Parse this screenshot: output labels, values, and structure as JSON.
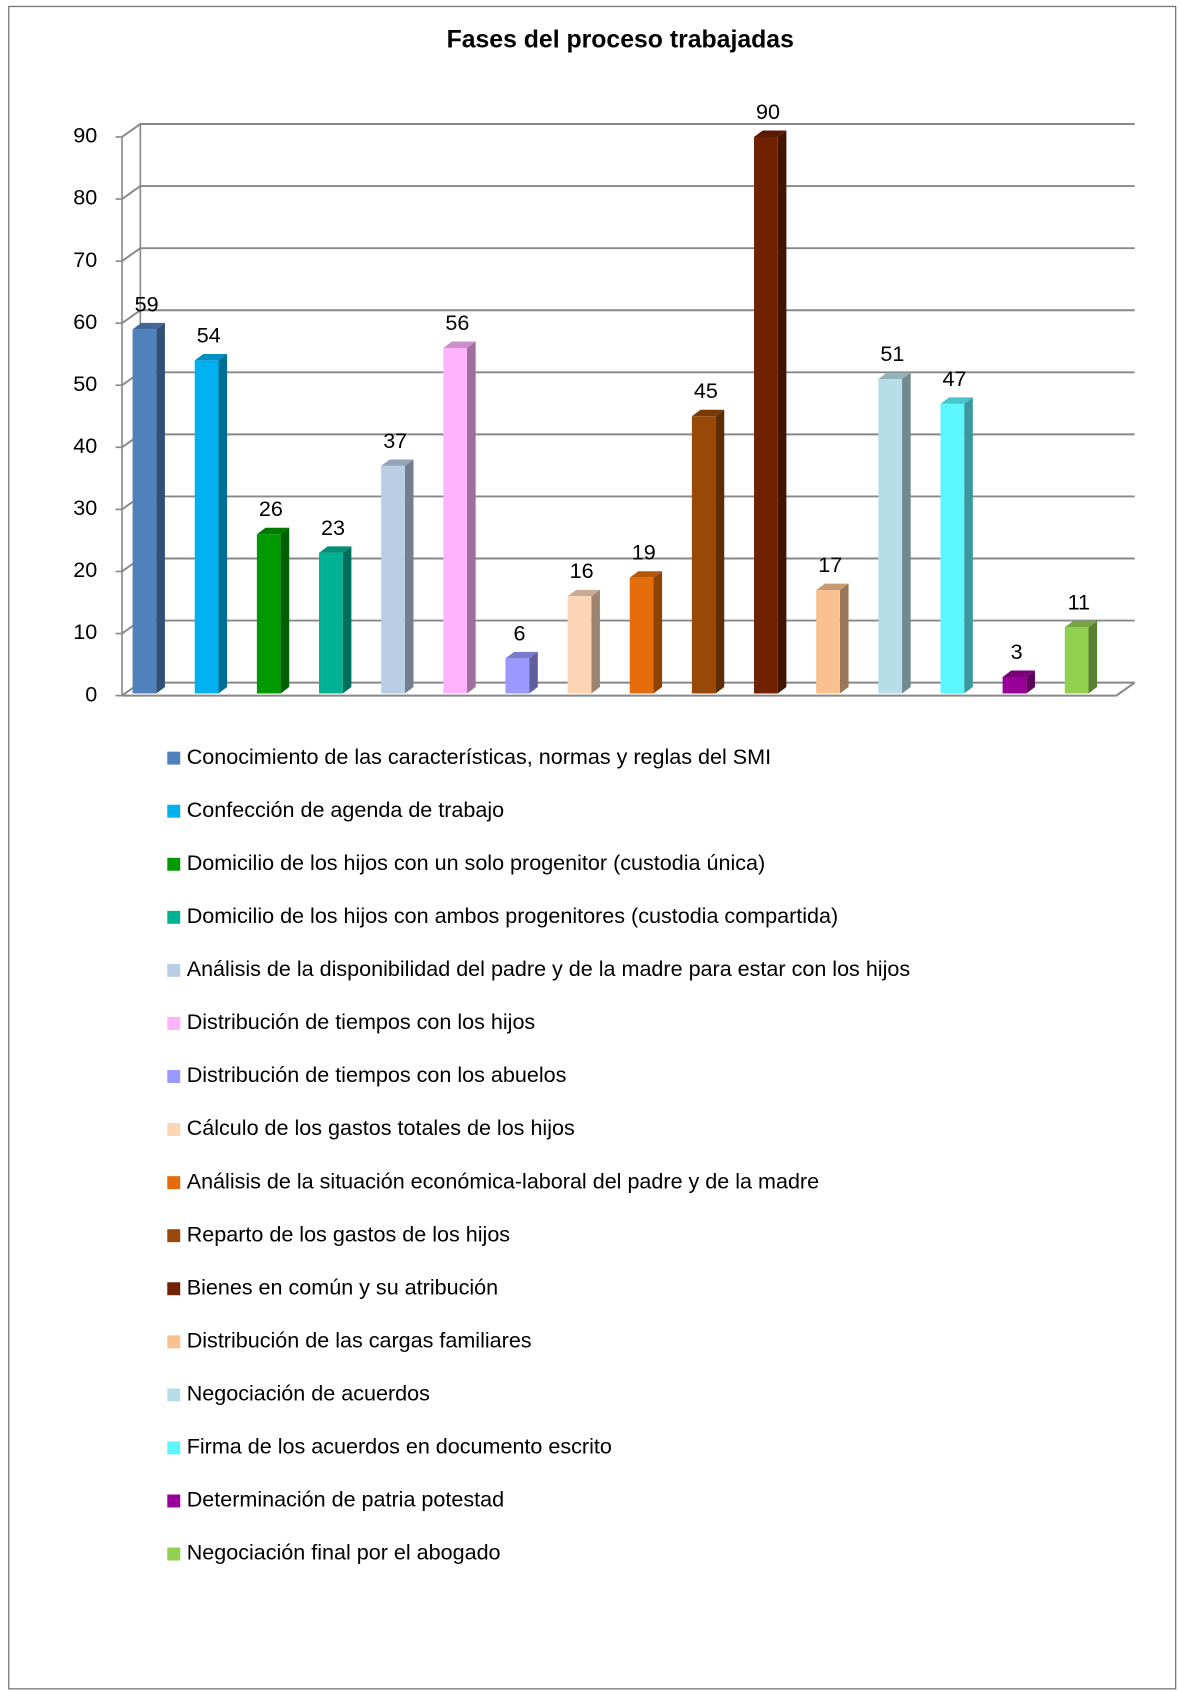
{
  "chart_data": {
    "type": "bar",
    "title": "Fases del proceso trabajadas",
    "categories": [
      "Conocimiento de las características, normas y reglas del SMI",
      "Confección de agenda de trabajo",
      "Domicilio de los hijos con un solo progenitor (custodia única)",
      "Domicilio de los hijos con ambos progenitores (custodia compartida)",
      "Análisis de la disponibilidad del padre y de la madre para estar con los hijos",
      "Distribución de tiempos con los hijos",
      "Distribución de tiempos con los abuelos",
      "Cálculo de los gastos totales de los hijos",
      "Análisis de la situación económica-laboral del padre y de la madre",
      "Reparto de los gastos de los hijos",
      "Bienes en común y su atribución",
      "Distribución de las cargas familiares",
      "Negociación de acuerdos",
      "Firma de los acuerdos en documento escrito",
      "Determinación de patria potestad",
      "Negociación final por el abogado"
    ],
    "values": [
      59,
      54,
      26,
      23,
      37,
      56,
      6,
      16,
      19,
      45,
      90,
      17,
      51,
      47,
      3,
      11
    ],
    "colors": [
      "#4f81bd",
      "#00b0f0",
      "#009900",
      "#00b294",
      "#b9cde5",
      "#ffb3ff",
      "#9999ff",
      "#fcd5b5",
      "#e46c0a",
      "#984807",
      "#6f2100",
      "#fac090",
      "#b7dee8",
      "#5cf6ff",
      "#990099",
      "#92d050"
    ],
    "ylim": [
      0,
      90
    ],
    "yticks": [
      0,
      10,
      20,
      30,
      40,
      50,
      60,
      70,
      80,
      90
    ],
    "grid": true,
    "legend": "bottom"
  }
}
